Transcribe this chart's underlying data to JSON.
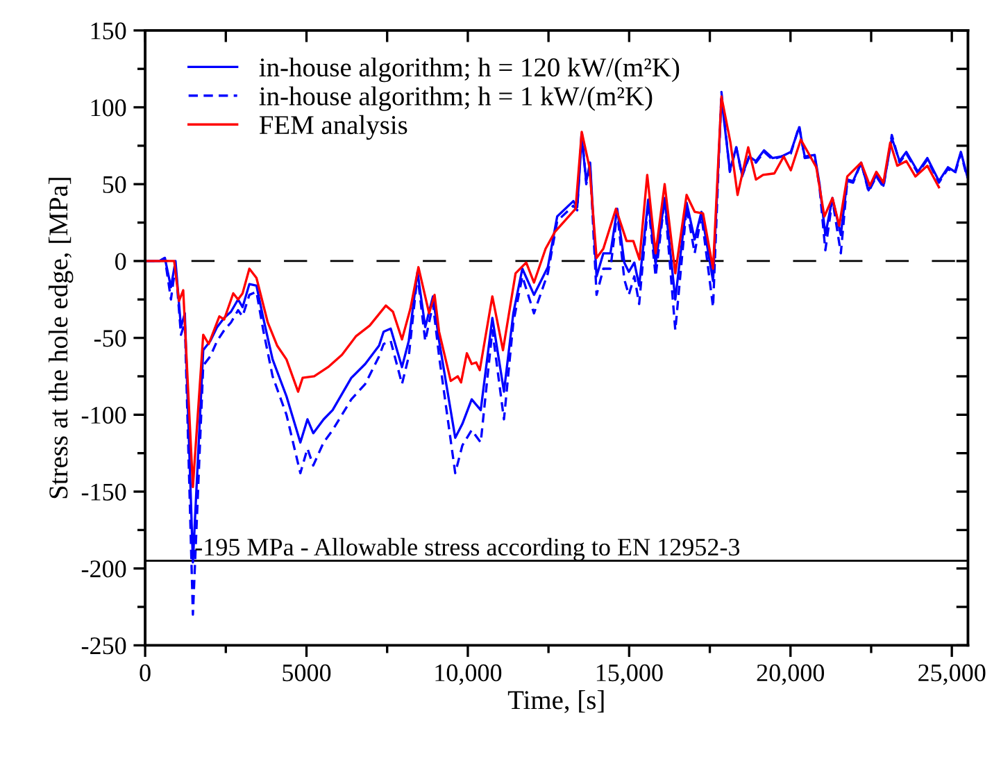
{
  "chart_data": {
    "type": "line",
    "xlabel": "Time, [s]",
    "ylabel": "Stress at the hole edge, [MPa]",
    "xlim": [
      0,
      25500
    ],
    "ylim": [
      -250,
      150
    ],
    "xticks": [
      0,
      {
        "value": 2500,
        "label": null
      },
      5000,
      {
        "value": 7500,
        "label": null
      },
      {
        "value": 10000,
        "label": "10,000"
      },
      {
        "value": 12500,
        "label": null
      },
      {
        "value": 15000,
        "label": "15,000"
      },
      {
        "value": 17500,
        "label": null
      },
      {
        "value": 20000,
        "label": "20,000"
      },
      {
        "value": 22500,
        "label": null
      },
      {
        "value": 25000,
        "label": "25,000"
      }
    ],
    "yticks": [
      -250,
      {
        "value": -225,
        "label": null
      },
      -200,
      {
        "value": -175,
        "label": null
      },
      -150,
      {
        "value": -125,
        "label": null
      },
      -100,
      {
        "value": -75,
        "label": null
      },
      -50,
      {
        "value": -25,
        "label": null
      },
      0,
      {
        "value": 25,
        "label": null
      },
      50,
      {
        "value": 75,
        "label": null
      },
      100,
      {
        "value": 125,
        "label": null
      },
      150
    ],
    "grid": false,
    "legend": "top left",
    "marker": "none",
    "ref_lines": [
      {
        "axis": "y",
        "value": 0,
        "line_style": "dashed",
        "color": "#000000"
      },
      {
        "axis": "y",
        "value": -195,
        "label": "-195 MPa - Allowable stress according to EN 12952-3",
        "line_style": "solid",
        "color": "#000000"
      }
    ],
    "series": [
      {
        "name": "in-house algorithm; h = 120 kW/(m²K)",
        "color": "#0000ff",
        "line_style": "solid",
        "x": [
          0,
          440,
          610,
          800,
          940,
          1110,
          1230,
          1480,
          1800,
          2020,
          2230,
          2450,
          2660,
          2880,
          3020,
          3230,
          3450,
          3660,
          3950,
          4380,
          4810,
          5030,
          5210,
          5530,
          5810,
          6390,
          6820,
          7250,
          7390,
          7610,
          7960,
          8170,
          8440,
          8680,
          8920,
          9110,
          9610,
          9830,
          10120,
          10400,
          10760,
          11120,
          11410,
          11690,
          12050,
          12480,
          12770,
          13270,
          13390,
          13530,
          13670,
          13790,
          13990,
          14200,
          14420,
          14630,
          14850,
          14990,
          15160,
          15310,
          15590,
          15820,
          16100,
          16430,
          16780,
          17030,
          17240,
          17600,
          17860,
          18120,
          18320,
          18500,
          18720,
          18930,
          19180,
          19440,
          19720,
          20010,
          20270,
          20440,
          20750,
          20900,
          21080,
          21300,
          21560,
          21760,
          21940,
          22190,
          22420,
          22660,
          22880,
          23140,
          23380,
          23590,
          23950,
          24240,
          24600,
          24880,
          25100,
          25280,
          25480
        ],
        "values": [
          0,
          0,
          2,
          -17,
          0,
          -43,
          -34,
          -196,
          -58,
          -52,
          -43,
          -37,
          -33,
          -25,
          -30,
          -15,
          -16,
          -37,
          -64,
          -88,
          -118,
          -103,
          -112,
          -103,
          -97,
          -76,
          -67,
          -55,
          -46,
          -44,
          -69,
          -52,
          -7,
          -43,
          -23,
          -52,
          -115,
          -106,
          -90,
          -97,
          -37,
          -85,
          -34,
          -5,
          -22,
          -4,
          29,
          39,
          35,
          80,
          52,
          64,
          -10,
          5,
          5,
          34,
          -1,
          -7,
          -1,
          -16,
          40,
          -2,
          41,
          -25,
          38,
          14,
          32,
          -13,
          106,
          59,
          74,
          56,
          68,
          65,
          72,
          67,
          68,
          71,
          87,
          68,
          69,
          50,
          17,
          41,
          17,
          53,
          52,
          64,
          46,
          56,
          49,
          80,
          65,
          71,
          58,
          67,
          52,
          61,
          58,
          71,
          55
        ]
      },
      {
        "name": "in-house algorithm; h = 1 kW/(m²K)",
        "color": "#0000ff",
        "line_style": "dashed",
        "x": [
          0,
          440,
          610,
          800,
          940,
          1110,
          1230,
          1480,
          1800,
          2020,
          2230,
          2450,
          2660,
          2880,
          3020,
          3230,
          3450,
          3660,
          3950,
          4380,
          4810,
          5030,
          5210,
          5530,
          5810,
          6390,
          6820,
          7250,
          7390,
          7610,
          7960,
          8170,
          8440,
          8680,
          8920,
          9110,
          9610,
          9830,
          10120,
          10400,
          10760,
          11120,
          11410,
          11690,
          12050,
          12480,
          12770,
          13270,
          13390,
          13530,
          13670,
          13790,
          13990,
          14200,
          14420,
          14630,
          14850,
          14990,
          15160,
          15310,
          15590,
          15820,
          16100,
          16430,
          16780,
          17030,
          17240,
          17600,
          17860,
          18120,
          18320,
          18500,
          18720,
          18930,
          19180,
          19440,
          19720,
          20010,
          20270,
          20440,
          20750,
          20900,
          21080,
          21300,
          21560,
          21760,
          21940,
          22190,
          22420,
          22660,
          22880,
          23140,
          23380,
          23590,
          23950,
          24240,
          24600,
          24880,
          25100,
          25280,
          25480
        ],
        "values": [
          0,
          0,
          2,
          -25,
          -3,
          -48,
          -40,
          -230,
          -68,
          -62,
          -52,
          -45,
          -40,
          -32,
          -36,
          -22,
          -20,
          -45,
          -75,
          -100,
          -138,
          -122,
          -133,
          -118,
          -110,
          -90,
          -80,
          -62,
          -54,
          -52,
          -80,
          -62,
          -9,
          -52,
          -28,
          -62,
          -138,
          -120,
          -110,
          -118,
          -45,
          -103,
          -40,
          -10,
          -34,
          -8,
          26,
          36,
          33,
          85,
          50,
          62,
          -22,
          -5,
          -5,
          32,
          -12,
          -22,
          -10,
          -28,
          38,
          -10,
          40,
          -45,
          35,
          5,
          30,
          -30,
          110,
          58,
          74,
          55,
          68,
          64,
          71,
          66,
          68,
          70,
          88,
          67,
          68,
          48,
          7,
          40,
          5,
          52,
          51,
          64,
          45,
          55,
          48,
          82,
          64,
          70,
          57,
          66,
          51,
          60,
          57,
          70,
          54
        ]
      },
      {
        "name": "FEM analysis",
        "color": "#ff0000",
        "line_style": "solid",
        "x": [
          0,
          900,
          1050,
          1180,
          1480,
          1800,
          1970,
          2300,
          2450,
          2730,
          2880,
          3020,
          3230,
          3450,
          3800,
          4090,
          4380,
          4740,
          4880,
          5240,
          5670,
          6100,
          6530,
          6960,
          7460,
          7680,
          7960,
          8220,
          8470,
          8800,
          8970,
          9110,
          9470,
          9690,
          9790,
          9970,
          10120,
          10260,
          10370,
          10760,
          11090,
          11480,
          11810,
          12050,
          12410,
          12700,
          13340,
          13530,
          13770,
          13990,
          14200,
          14590,
          14920,
          15130,
          15320,
          15560,
          15820,
          16100,
          16430,
          16780,
          17030,
          17290,
          17600,
          17860,
          18140,
          18360,
          18690,
          18930,
          19150,
          19500,
          19790,
          20010,
          20320,
          20800,
          21050,
          21300,
          21510,
          21760,
          22190,
          22460,
          22660,
          22880,
          23090,
          23310,
          23590,
          23870,
          24240,
          24600
        ],
        "values": [
          0,
          0,
          -26,
          -19,
          -147,
          -48,
          -54,
          -36,
          -38,
          -21,
          -25,
          -21,
          -5,
          -11,
          -40,
          -55,
          -64,
          -85,
          -76,
          -75,
          -69,
          -61,
          -49,
          -42,
          -29,
          -33,
          -51,
          -31,
          -4,
          -34,
          -22,
          -46,
          -78,
          -75,
          -79,
          -60,
          -67,
          -66,
          -71,
          -23,
          -58,
          -8,
          -1,
          -14,
          8,
          19,
          34,
          84,
          61,
          2,
          8,
          34,
          13,
          13,
          1,
          56,
          5,
          50,
          -8,
          43,
          32,
          31,
          -5,
          107,
          77,
          43,
          74,
          53,
          56,
          57,
          68,
          59,
          79,
          61,
          29,
          41,
          23,
          55,
          64,
          49,
          58,
          51,
          77,
          62,
          65,
          55,
          62,
          48
        ]
      }
    ]
  }
}
